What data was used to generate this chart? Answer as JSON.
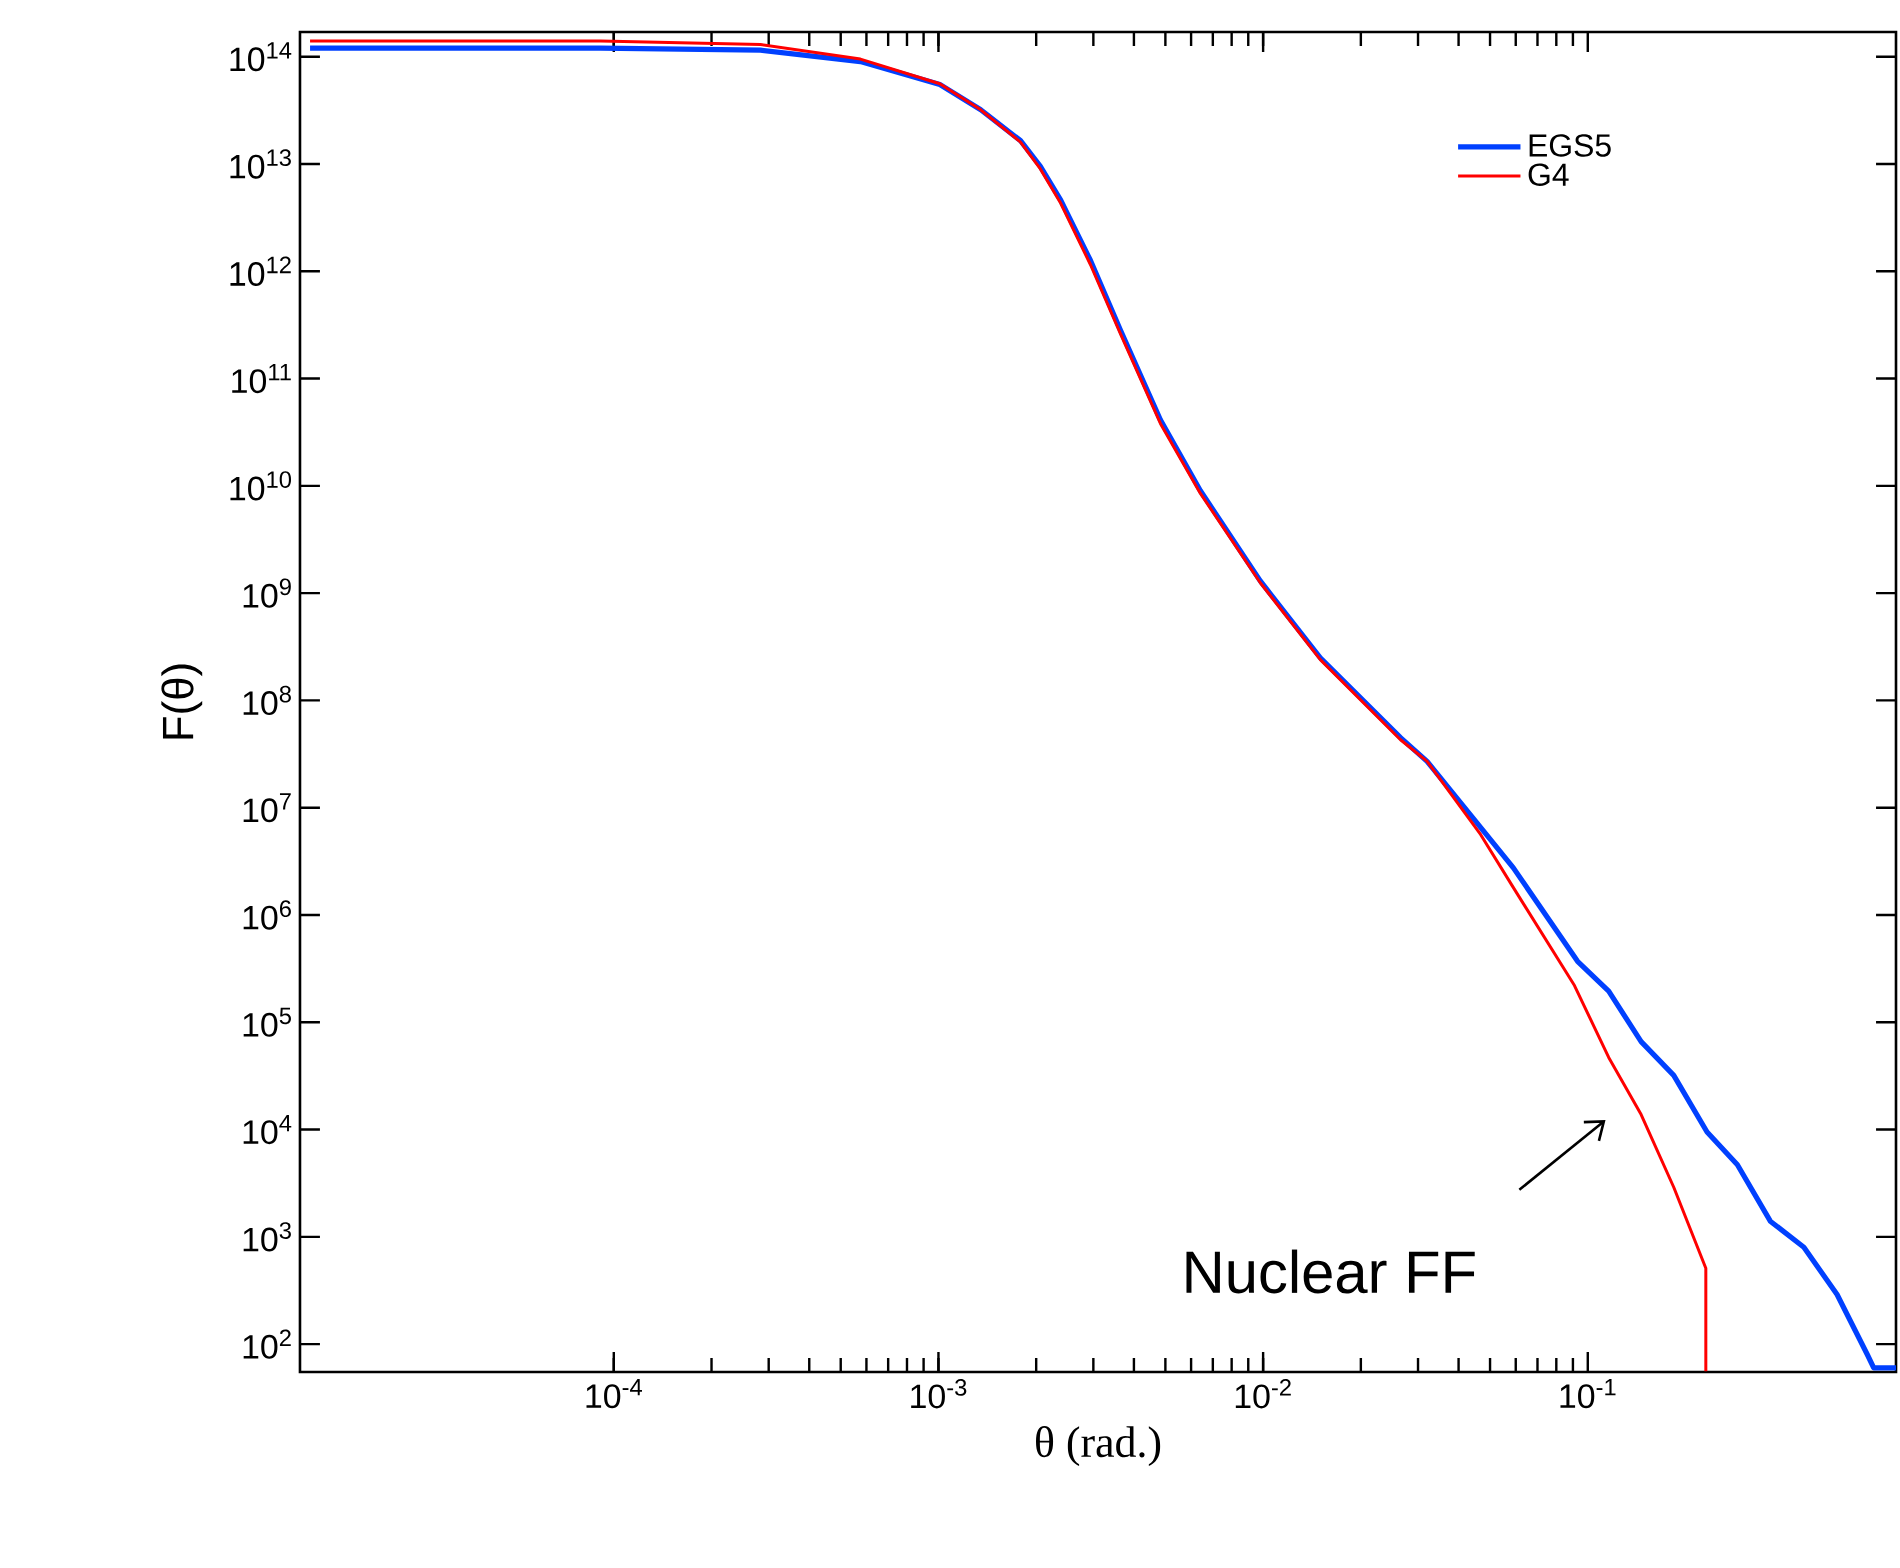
{
  "chart_data": {
    "type": "line",
    "xlabel": "θ (rad.)",
    "ylabel": "F(θ)",
    "log": "xy",
    "grid": false,
    "legend": "top right",
    "line_style": "solid",
    "marker": "none",
    "xlim": [
      1.08e-05,
      0.89
    ],
    "ylim": [
      55,
      170000000000000.0
    ],
    "xticks": [
      {
        "value": 0.0001,
        "label": "10$^{-4}$"
      },
      {
        "value": 0.001,
        "label": "10$^{-3}$"
      },
      {
        "value": 0.01,
        "label": "10$^{-2}$"
      },
      {
        "value": 0.1,
        "label": "10$^{-1}$"
      }
    ],
    "yticks": [
      {
        "value": 100,
        "label": "10$^{2}$"
      },
      {
        "value": 1000,
        "label": "10$^{3}$"
      },
      {
        "value": 10000,
        "label": "10$^{4}$"
      },
      {
        "value": 100000,
        "label": "10$^{5}$"
      },
      {
        "value": 1000000,
        "label": "10$^{6}$"
      },
      {
        "value": 10000000,
        "label": "10$^{7}$"
      },
      {
        "value": 100000000,
        "label": "10$^{8}$"
      },
      {
        "value": 1000000000,
        "label": "10$^{9}$"
      },
      {
        "value": 10000000000,
        "label": "10$^{10}$"
      },
      {
        "value": 100000000000,
        "label": "10$^{11}$"
      },
      {
        "value": 1000000000000,
        "label": "10$^{12}$"
      },
      {
        "value": 10000000000000,
        "label": "10$^{13}$"
      },
      {
        "value": 100000000000000,
        "label": "10$^{14}$"
      }
    ],
    "series": [
      {
        "name": "EGS5",
        "color": "#0040ff",
        "x": [
          1.16e-05,
          9.1e-05,
          0.000283,
          0.000575,
          0.00101,
          0.00135,
          0.00179,
          0.00206,
          0.00238,
          0.00294,
          0.00364,
          0.00483,
          0.00641,
          0.0098,
          0.015,
          0.0265,
          0.032,
          0.059,
          0.093,
          0.116,
          0.146,
          0.184,
          0.233,
          0.289,
          0.365,
          0.463,
          0.586,
          0.726,
          0.76,
          0.89
        ],
        "values": [
          120000000000000.0,
          120000000000000.0,
          115000000000000.0,
          90000000000000.0,
          55000000000000.0,
          32000000000000.0,
          16500000000000.0,
          9500000000000.0,
          4600000000000.0,
          1260000000000.0,
          280000000000.0,
          41000000000.0,
          9000000000.0,
          1300000000.0,
          250000000.0,
          45000000.0,
          27000000.0,
          2750000.0,
          370000.0,
          195000.0,
          66000.0,
          32000.0,
          9500.0,
          4700.0,
          1400.0,
          800,
          290,
          80,
          60,
          60
        ]
      },
      {
        "name": "G4",
        "color": "#ff0000",
        "x": [
          1.16e-05,
          9.1e-05,
          0.000283,
          0.000575,
          0.00101,
          0.00135,
          0.00179,
          0.00206,
          0.00238,
          0.00294,
          0.00364,
          0.00483,
          0.00641,
          0.0098,
          0.015,
          0.0265,
          0.032,
          0.0468,
          0.059,
          0.091,
          0.116,
          0.146,
          0.184,
          0.231,
          0.231
        ],
        "values": [
          140000000000000.0,
          140000000000000.0,
          130000000000000.0,
          95000000000000.0,
          56000000000000.0,
          32000000000000.0,
          16000000000000.0,
          9000000000000.0,
          4300000000000.0,
          1150000000000.0,
          260000000000.0,
          38000000000.0,
          8500000000.0,
          1250000000.0,
          240000000.0,
          43000000.0,
          27000000.0,
          5600000.0,
          1800000.0,
          220000.0,
          47000.0,
          13800.0,
          2900.0,
          510,
          56
        ]
      }
    ],
    "annotations": [
      "Nuclear FF"
    ]
  }
}
